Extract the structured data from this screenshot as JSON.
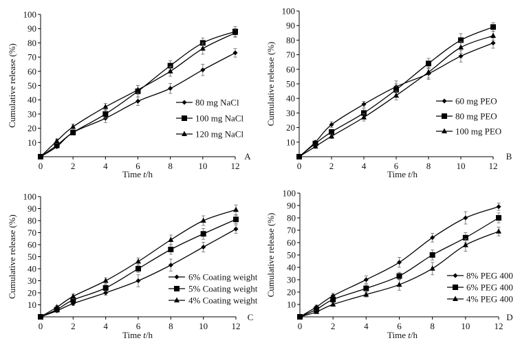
{
  "chart_data": [
    {
      "type": "line",
      "panel_label": "A",
      "xlabel_main": "Time ",
      "xlabel_var": "t",
      "xlabel_unit": "/h",
      "ylabel": "Cumulative release (%)",
      "x": [
        0,
        1,
        2,
        4,
        6,
        8,
        10,
        12
      ],
      "x_ticks": [
        0,
        2,
        4,
        6,
        8,
        10,
        12
      ],
      "y_ticks": [
        10,
        20,
        30,
        40,
        50,
        60,
        70,
        80,
        90,
        100
      ],
      "xlim": [
        0,
        12
      ],
      "ylim": [
        0,
        100
      ],
      "grid": false,
      "legend_position": "right-middle",
      "series": [
        {
          "name": "80 mg NaCl",
          "marker": "diamond",
          "values": [
            0,
            7,
            17,
            27,
            39,
            48,
            61,
            73
          ],
          "errors": [
            0,
            1,
            1.5,
            3,
            3,
            3.5,
            4,
            3
          ]
        },
        {
          "name": "100 mg NaCl",
          "marker": "square",
          "values": [
            0,
            8,
            17,
            30,
            46,
            64,
            80,
            88
          ],
          "errors": [
            0,
            1.5,
            1.5,
            3,
            4,
            3.5,
            3.5,
            3.5
          ]
        },
        {
          "name": "120 mg NaCl",
          "marker": "triangle",
          "values": [
            0,
            11,
            21,
            35,
            47,
            60,
            76,
            87
          ],
          "errors": [
            0,
            1.5,
            2,
            2.5,
            3,
            3.5,
            4,
            3
          ]
        }
      ]
    },
    {
      "type": "line",
      "panel_label": "B",
      "xlabel_main": "Time ",
      "xlabel_var": "t",
      "xlabel_unit": "/h",
      "ylabel": "Cumulative release (%)",
      "x": [
        0,
        1,
        2,
        4,
        6,
        8,
        10,
        12
      ],
      "x_ticks": [
        0,
        2,
        4,
        6,
        8,
        10,
        12
      ],
      "y_ticks": [
        10,
        20,
        30,
        40,
        50,
        60,
        70,
        80,
        90,
        100
      ],
      "xlim": [
        0,
        12
      ],
      "ylim": [
        0,
        100
      ],
      "grid": false,
      "legend_position": "right-middle",
      "series": [
        {
          "name": "60 mg PEO",
          "marker": "diamond",
          "values": [
            0,
            10,
            22,
            36,
            48,
            57,
            69,
            78
          ],
          "errors": [
            0,
            1,
            2,
            2,
            4,
            4,
            4,
            3.5
          ]
        },
        {
          "name": "80 mg PEO",
          "marker": "square",
          "values": [
            0,
            9,
            17,
            30,
            46,
            64,
            80,
            89
          ],
          "errors": [
            0,
            1,
            1.5,
            3,
            4,
            3.5,
            4.5,
            3
          ]
        },
        {
          "name": "100 mg PEO",
          "marker": "triangle",
          "values": [
            0,
            7,
            14,
            27,
            42,
            58,
            75,
            83
          ],
          "errors": [
            0,
            1,
            1.5,
            2.5,
            3,
            4,
            4,
            3
          ]
        }
      ]
    },
    {
      "type": "line",
      "panel_label": "C",
      "xlabel_main": "Time ",
      "xlabel_var": "t",
      "xlabel_unit": "/h",
      "ylabel": "Cumulative release (%)",
      "x": [
        0,
        1,
        2,
        4,
        6,
        8,
        10,
        12
      ],
      "x_ticks": [
        0,
        2,
        4,
        6,
        8,
        10,
        12
      ],
      "y_ticks": [
        10,
        20,
        30,
        40,
        50,
        60,
        70,
        80,
        90,
        100
      ],
      "xlim": [
        0,
        12
      ],
      "ylim": [
        0,
        100
      ],
      "grid": false,
      "legend_position": "bottom-right",
      "series": [
        {
          "name": "6% Coating weight",
          "marker": "diamond",
          "values": [
            0,
            5,
            11,
            20,
            30,
            43,
            58,
            73
          ],
          "errors": [
            0,
            1,
            1.5,
            2,
            5,
            5,
            4,
            3.5
          ]
        },
        {
          "name": "5% Coating weight",
          "marker": "square",
          "values": [
            0,
            6,
            14,
            24,
            40,
            56,
            69,
            81
          ],
          "errors": [
            0,
            1,
            2,
            2.5,
            3,
            4,
            4.5,
            3.5
          ]
        },
        {
          "name": "4% Coating weight",
          "marker": "triangle",
          "values": [
            0,
            8,
            17,
            30,
            46,
            64,
            80,
            89
          ],
          "errors": [
            0,
            1.5,
            2,
            2.5,
            3,
            4,
            4,
            4
          ]
        }
      ]
    },
    {
      "type": "line",
      "panel_label": "D",
      "xlabel_main": "Time ",
      "xlabel_var": "t",
      "xlabel_unit": "/h",
      "ylabel": "Cumulative release (%)",
      "x": [
        0,
        1,
        2,
        4,
        6,
        8,
        10,
        12
      ],
      "x_ticks": [
        0,
        2,
        4,
        6,
        8,
        10,
        12
      ],
      "y_ticks": [
        10,
        20,
        30,
        40,
        50,
        60,
        70,
        80,
        90,
        100
      ],
      "xlim": [
        0,
        12
      ],
      "ylim": [
        0,
        100
      ],
      "grid": false,
      "legend_position": "bottom-right",
      "series": [
        {
          "name": "8% PEG 400",
          "marker": "diamond",
          "values": [
            0,
            8,
            17,
            30,
            44,
            64,
            80,
            89
          ],
          "errors": [
            0,
            1.5,
            2,
            3,
            4,
            3.5,
            5,
            3
          ]
        },
        {
          "name": "6% PEG 400",
          "marker": "square",
          "values": [
            0,
            6,
            14,
            23,
            33,
            50,
            64,
            80
          ],
          "errors": [
            0,
            1.5,
            2,
            3,
            3,
            4,
            4,
            4
          ]
        },
        {
          "name": "4% PEG 400",
          "marker": "triangle",
          "values": [
            0,
            4,
            10,
            18,
            26,
            39,
            58,
            69
          ],
          "errors": [
            0,
            1,
            1.5,
            2,
            4.5,
            5,
            5,
            3.5
          ]
        }
      ]
    }
  ]
}
